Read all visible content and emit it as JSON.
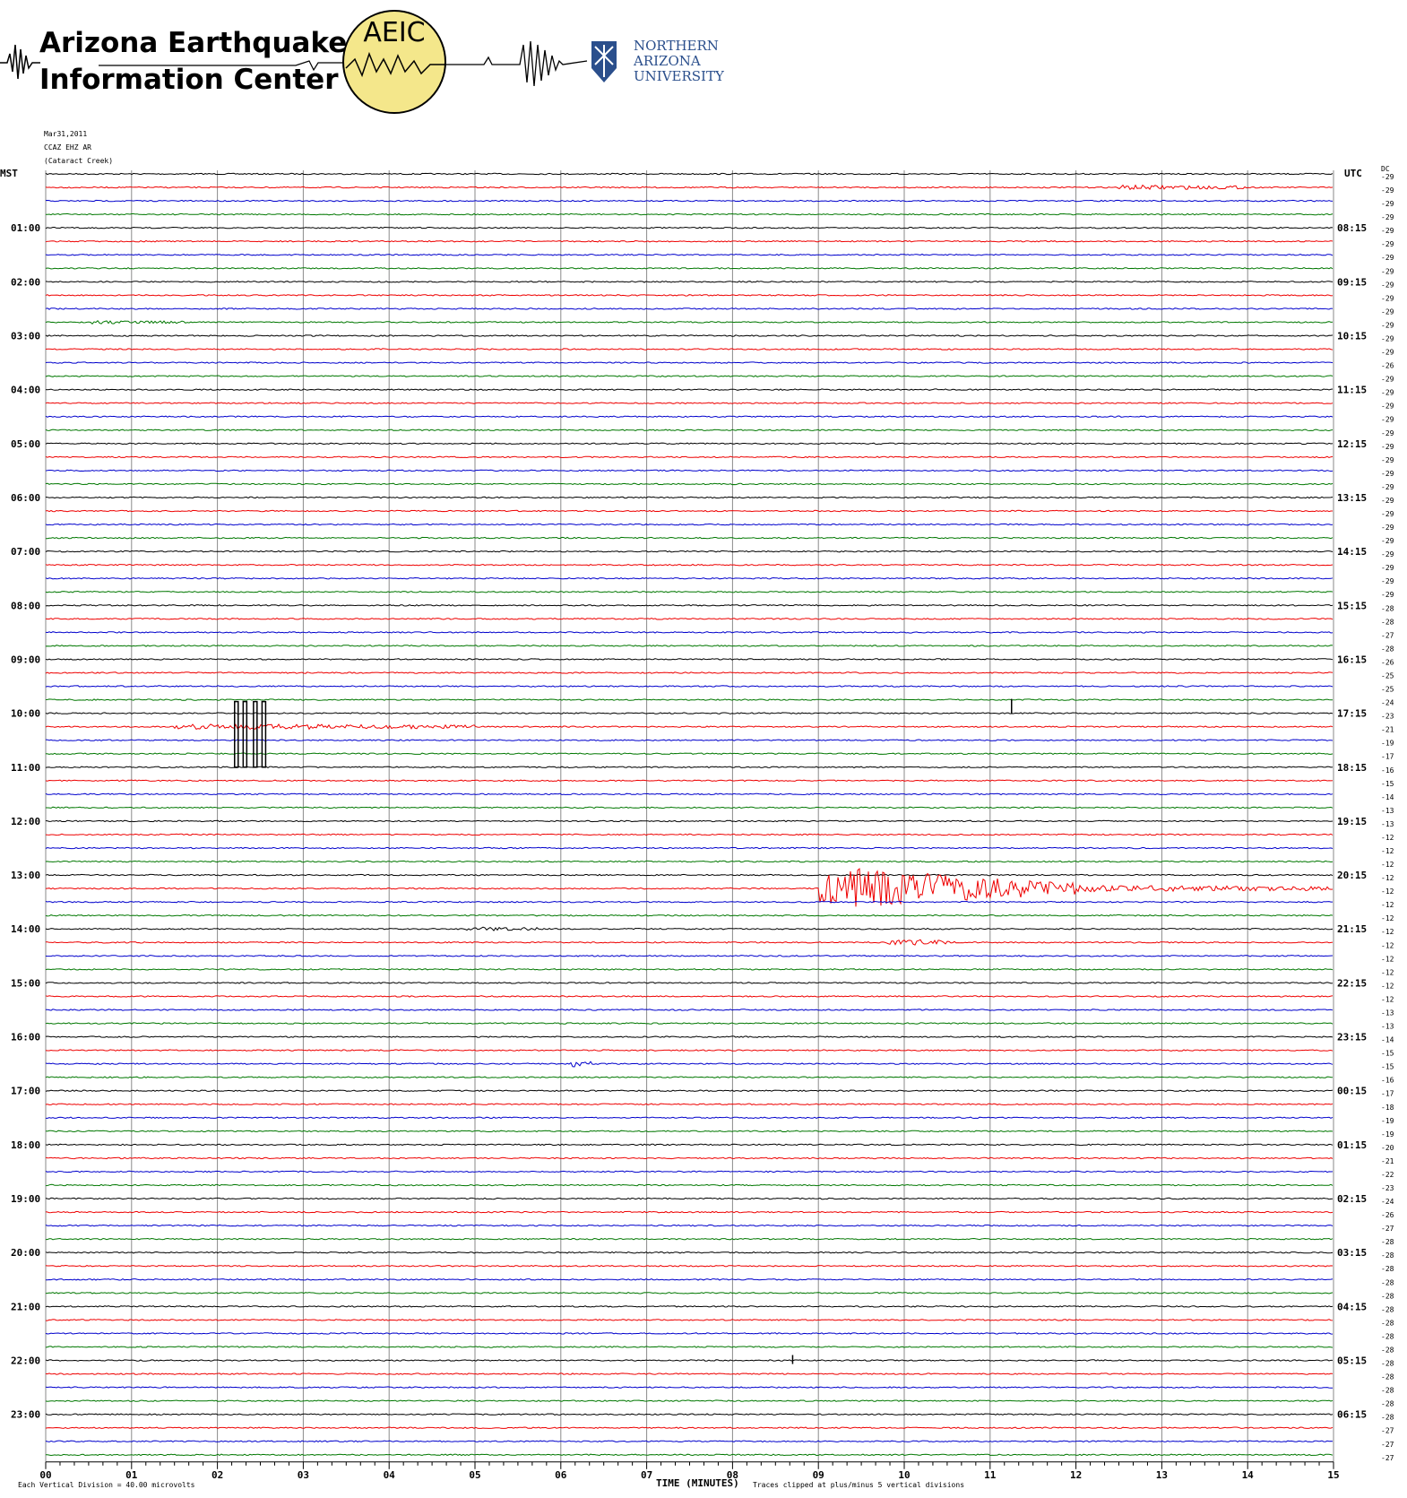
{
  "header": {
    "title_line1": "Arizona Earthquake",
    "title_line2": "Information Center",
    "logo_text": "AEIC",
    "university": [
      "NORTHERN",
      "ARIZONA",
      "UNIVERSITY"
    ]
  },
  "station": {
    "date": "Mar31,2011",
    "channel": "CCAZ EHZ AR",
    "name": "(Cataract Creek)"
  },
  "left_axis_label": "MST",
  "right_axis_label": "UTC",
  "dc_label": "DC",
  "mst_labels": [
    "01:00",
    "02:00",
    "03:00",
    "04:00",
    "05:00",
    "06:00",
    "07:00",
    "08:00",
    "09:00",
    "10:00",
    "11:00",
    "12:00",
    "13:00",
    "14:00",
    "15:00",
    "16:00",
    "17:00",
    "18:00",
    "19:00",
    "20:00",
    "21:00",
    "22:00",
    "23:00"
  ],
  "utc_labels": [
    "08:15",
    "09:15",
    "10:15",
    "11:15",
    "12:15",
    "13:15",
    "14:15",
    "15:15",
    "16:15",
    "17:15",
    "18:15",
    "19:15",
    "20:15",
    "21:15",
    "22:15",
    "23:15",
    "00:15",
    "01:15",
    "02:15",
    "03:15",
    "04:15",
    "05:15",
    "06:15"
  ],
  "time_ticks": [
    "00",
    "01",
    "02",
    "03",
    "04",
    "05",
    "06",
    "07",
    "08",
    "09",
    "10",
    "11",
    "12",
    "13",
    "14",
    "15"
  ],
  "x_axis_label": "TIME (MINUTES)",
  "footer_left": "Each Vertical Division =   40.00 microvolts",
  "footer_right": "Traces clipped at plus/minus 5 vertical divisions",
  "dc_offsets": [
    -29,
    -29,
    -29,
    -29,
    -29,
    -29,
    -29,
    -29,
    -29,
    -29,
    -29,
    -29,
    -29,
    -29,
    -26,
    -29,
    -29,
    -29,
    -29,
    -29,
    -29,
    -29,
    -29,
    -29,
    -29,
    -29,
    -29,
    -29,
    -29,
    -29,
    -29,
    -29,
    -28,
    -28,
    -27,
    -28,
    -26,
    -25,
    -25,
    -24,
    -23,
    -21,
    -19,
    -17,
    -16,
    -15,
    -14,
    -13,
    -13,
    -12,
    -12,
    -12,
    -12,
    -12,
    -12,
    -12,
    -12,
    -12,
    -12,
    -12,
    -12,
    -12,
    -13,
    -13,
    -14,
    -15,
    -15,
    -16,
    -17,
    -18,
    -19,
    -19,
    -20,
    -21,
    -22,
    -23,
    -24,
    -26,
    -27,
    -28,
    -28,
    -28,
    -28,
    -28,
    -28,
    -28,
    -28,
    -28,
    -28,
    -28,
    -28,
    -28,
    -28,
    -27,
    -27,
    -27
  ]
}
